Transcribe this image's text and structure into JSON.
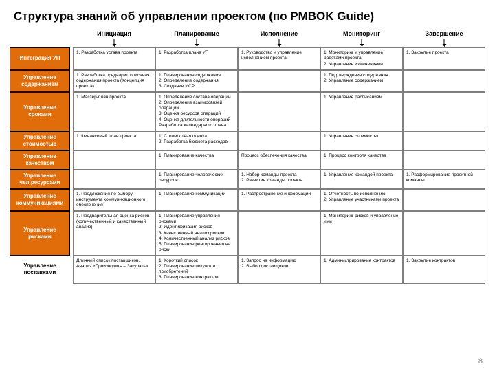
{
  "title": "Структура знаний об управлении проектом (по PMBOK Guide)",
  "slide_number": "8",
  "colors": {
    "rowhead_bg": "#e06c0a",
    "rowhead_fg": "#ffffff",
    "grid_border": "#7f7f7f"
  },
  "columns": [
    "Инициация",
    "Планирование",
    "Исполнение",
    "Мониторинг",
    "Завершение"
  ],
  "rows": [
    {
      "label": "Интеграция УП",
      "cells": [
        "1. Разработка устава проекта",
        "1. Разработка плана УП",
        "1. Руководство и управление исполнением проекта",
        "1. Мониторинг и управление работами проекта\n2. Управление изменениями",
        "1. Закрытие проекта"
      ]
    },
    {
      "label": "Управление содержанием",
      "cells": [
        "1. Разработка предварит. описания содержания проекта (Концепция проекта)",
        "1. Планирование содержания\n2. Определение содержания\n3. Создание ИСР",
        "",
        "1. Подтверждение содержания\n2. Управление содержанием",
        ""
      ]
    },
    {
      "label": "Управление сроками",
      "cells": [
        "1. Мастер-план проекта",
        "1. Определение состава операций\n2. Определение взаимосвязей операций\n3. Оценка ресурсов операций\n4. Оценка длительности операций\nРазработка календарного плана",
        "",
        "1. Управление расписанием",
        ""
      ]
    },
    {
      "label": "Управление стоимостью",
      "cells": [
        "1. Финансовый план проекта",
        "1. Стоимостная оценка\n2. Разработка бюджета расходов",
        "",
        "1. Управление стоимостью",
        ""
      ]
    },
    {
      "label": "Управление качеством",
      "cells": [
        "",
        "1. Планирование качества",
        "Процесс обеспечения качества",
        "1. Процесс контроля качества",
        ""
      ]
    },
    {
      "label": "Управление чел.ресурсами",
      "cells": [
        "",
        "1. Планирование человеческих ресурсов",
        "1. Набор команды проекта\n2. Развитие команды проекта",
        "1. Управление командой проекта",
        "1. Расформирование проектной команды"
      ]
    },
    {
      "label": "Управление коммуникациями",
      "cells": [
        "1. Предложения по выбору инструмента коммуникационного обеспечения",
        "1. Планирование коммуникаций",
        "1. Распространение информации",
        "1. Отчетность по исполнению\n2. Управление участниками проекта",
        ""
      ]
    },
    {
      "label": "Управление рисками",
      "cells": [
        "1. Предварительная оценка рисков (количественный и качественный анализ)",
        "1. Планирование управления рисками\n2. Идентификация рисков\n3. Качественный анализ рисков\n4. Количественный анализ рисков\n5. Планирование реагирования на риски",
        "",
        "1. Мониторинг рисков и управление ими",
        ""
      ]
    },
    {
      "label": "Управление поставками",
      "noborder": true,
      "cells": [
        "Длинный список поставщиков.\nАнализ «Производить – Закупать»",
        "1. Короткий список\n2. Планирование покупок и приобретений\n3. Планирование контрактов",
        "1. Запрос на информацию\n2. Выбор поставщиков",
        "1. Администрирование контрактов",
        "1. Закрытие контрактов"
      ]
    }
  ]
}
